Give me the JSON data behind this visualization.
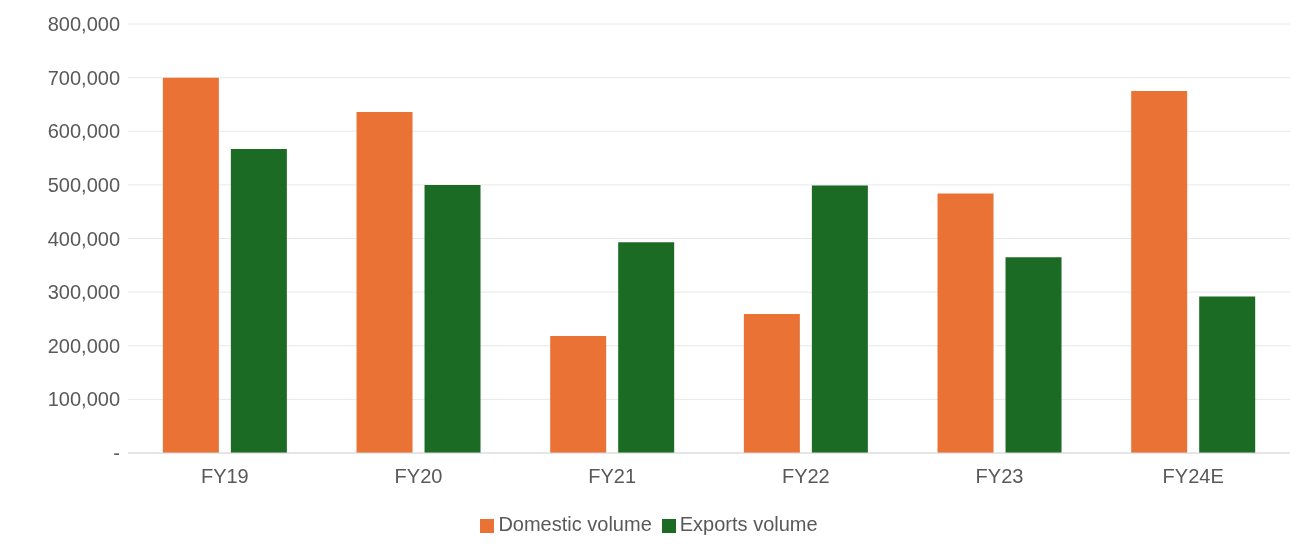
{
  "chart_data": {
    "type": "bar",
    "categories": [
      "FY19",
      "FY20",
      "FY21",
      "FY22",
      "FY23",
      "FY24E"
    ],
    "series": [
      {
        "name": "Domestic volume",
        "color": "#ea7235",
        "values": [
          700000,
          636000,
          218000,
          259000,
          484000,
          675000
        ]
      },
      {
        "name": "Exports volume",
        "color": "#1b6b24",
        "values": [
          567000,
          500000,
          393000,
          499000,
          365000,
          292000
        ]
      }
    ],
    "ylim": [
      0,
      800000
    ],
    "yticks": [
      {
        "value": 0,
        "label": "-"
      },
      {
        "value": 100000,
        "label": "100,000"
      },
      {
        "value": 200000,
        "label": "200,000"
      },
      {
        "value": 300000,
        "label": "300,000"
      },
      {
        "value": 400000,
        "label": "400,000"
      },
      {
        "value": 500000,
        "label": "500,000"
      },
      {
        "value": 600000,
        "label": "600,000"
      },
      {
        "value": 700000,
        "label": "700,000"
      },
      {
        "value": 800000,
        "label": "800,000"
      }
    ],
    "grid": "y",
    "legend": "bottom"
  }
}
